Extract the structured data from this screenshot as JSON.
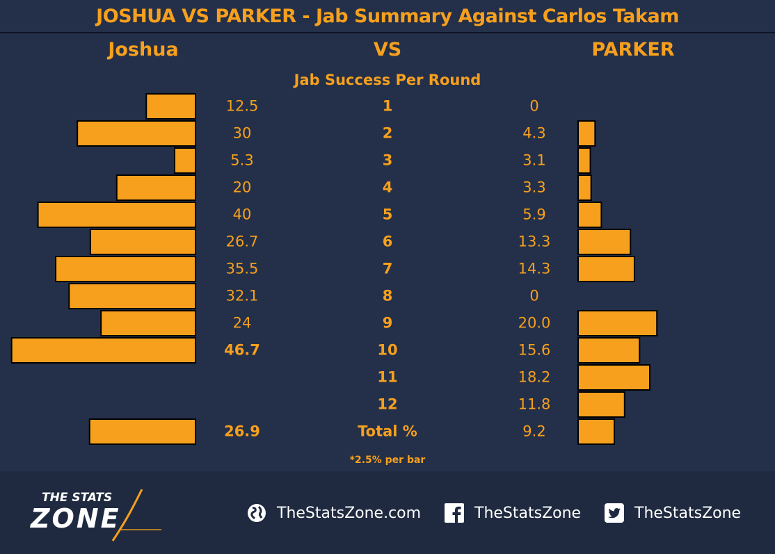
{
  "title": "JOSHUA VS PARKER - Jab Summary Against Carlos Takam",
  "left_header": "Joshua",
  "mid_header": "VS",
  "right_header": "PARKER",
  "subtitle": "Jab Success Per Round",
  "footnote": "*2.5% per bar",
  "colors": {
    "bar": "#f7a01d",
    "text": "#f7a01d",
    "background": "#243049",
    "outline": "#000000"
  },
  "chart_data": {
    "type": "bar",
    "orientation": "horizontal-butterfly",
    "categories": [
      "1",
      "2",
      "3",
      "4",
      "5",
      "6",
      "7",
      "8",
      "9",
      "10",
      "11",
      "12",
      "Total %"
    ],
    "bold_categories": true,
    "series": [
      {
        "name": "Joshua",
        "side": "left",
        "labels": [
          "12.5",
          "30",
          "5.3",
          "20",
          "40",
          "26.7",
          "35.5",
          "32.1",
          "24",
          "46.7",
          "",
          "",
          "26.9"
        ],
        "values": [
          12.5,
          30,
          5.3,
          20,
          40,
          26.7,
          35.5,
          32.1,
          24,
          46.7,
          null,
          null,
          26.9
        ],
        "bold_labels": [
          false,
          false,
          false,
          false,
          false,
          false,
          false,
          false,
          false,
          true,
          false,
          false,
          true
        ]
      },
      {
        "name": "PARKER",
        "side": "right",
        "labels": [
          "0",
          "4.3",
          "3.1",
          "3.3",
          "5.9",
          "13.3",
          "14.3",
          "0",
          "20.0",
          "15.6",
          "18.2",
          "11.8",
          "9.2"
        ],
        "values": [
          0,
          4.3,
          3.1,
          3.3,
          5.9,
          13.3,
          14.3,
          0,
          20.0,
          15.6,
          18.2,
          11.8,
          9.2
        ],
        "bold_labels": [
          false,
          false,
          false,
          false,
          false,
          false,
          false,
          false,
          false,
          false,
          false,
          false,
          false
        ]
      }
    ],
    "bar_step": 2.5,
    "bar_step_note": "*2.5% per bar"
  },
  "footer": {
    "logo_top": "THE STATS",
    "logo_bottom": "ZONE",
    "website": {
      "icon": "globe-icon",
      "label": "TheStatsZone.com"
    },
    "facebook": {
      "icon": "facebook-icon",
      "label": "TheStatsZone"
    },
    "twitter": {
      "icon": "twitter-icon",
      "label": "TheStatsZone"
    }
  }
}
